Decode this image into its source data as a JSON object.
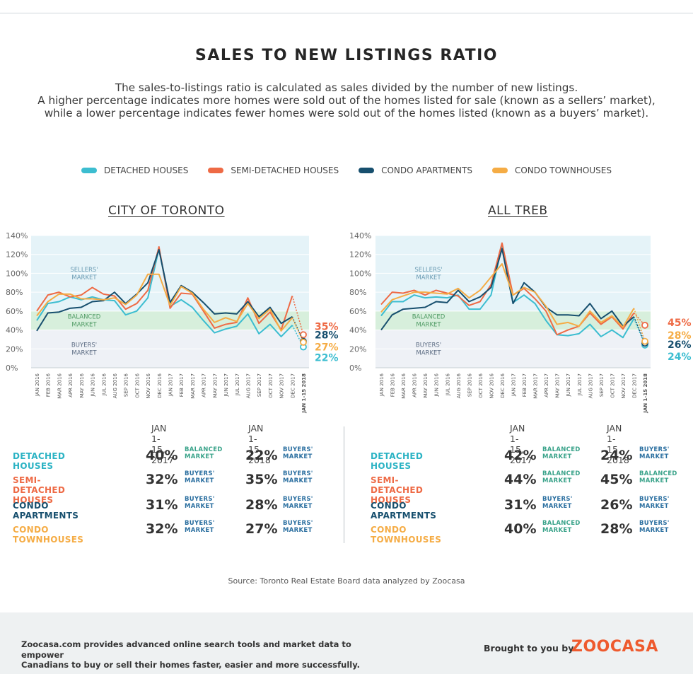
{
  "title": "SALES TO NEW LISTINGS RATIO",
  "subtitle": [
    "The sales-to-listings ratio is calculated as sales divided by the number of new listings.",
    "A higher percentage indicates more homes were sold out of the homes listed for sale (known as a sellers’ market),",
    "while a lower percentage indicates fewer homes were sold out of the homes listed (known as a buyers’ market)."
  ],
  "legend": [
    {
      "label": "DETACHED HOUSES",
      "color": "#3cbdd0"
    },
    {
      "label": "SEMI-DETACHED HOUSES",
      "color": "#ee6a45"
    },
    {
      "label": "CONDO APARTMENTS",
      "color": "#174f6e"
    },
    {
      "label": "CONDO TOWNHOUSES",
      "color": "#f5ac45"
    }
  ],
  "zones": {
    "sellers": "SELLERS' MARKET",
    "balanced": "BALANCED MARKET",
    "buyers": "BUYERS' MARKET"
  },
  "chart_data": [
    {
      "type": "line",
      "title": "CITY OF TORONTO",
      "ylim": [
        0,
        140
      ],
      "yticks": [
        "0%",
        "20%",
        "40%",
        "60%",
        "80%",
        "100%",
        "120%",
        "140%"
      ],
      "categories": [
        "JAN 2016",
        "FEB 2016",
        "MAR 2016",
        "APR 2016",
        "MAY 2016",
        "JUN 2016",
        "JUL 2016",
        "AUG 2016",
        "SEP 2016",
        "OCT 2016",
        "NOV 2016",
        "DEC 2016",
        "JAN 2017",
        "FEB 2017",
        "MAR 2017",
        "APR 2017",
        "MAY 2017",
        "JUN 2017",
        "JUL 2017",
        "AUG 2017",
        "SEP 2017",
        "OCT 2017",
        "NOV 2017",
        "DEC 2017",
        "JAN 1-15 2018"
      ],
      "series": [
        {
          "name": "DETACHED HOUSES",
          "color": "#3cbdd0",
          "values": [
            50,
            68,
            70,
            75,
            72,
            75,
            72,
            71,
            56,
            60,
            74,
            126,
            65,
            72,
            64,
            50,
            37,
            41,
            44,
            57,
            36,
            46,
            33,
            45,
            22
          ],
          "end_label": "22%"
        },
        {
          "name": "SEMI-DETACHED HOUSES",
          "color": "#ee6a45",
          "values": [
            60,
            77,
            80,
            75,
            77,
            85,
            78,
            76,
            62,
            68,
            82,
            128,
            63,
            79,
            78,
            60,
            42,
            46,
            48,
            74,
            47,
            59,
            40,
            76,
            35
          ],
          "end_label": "35%"
        },
        {
          "name": "CONDO APARTMENTS",
          "color": "#174f6e",
          "values": [
            39,
            58,
            59,
            63,
            64,
            70,
            71,
            80,
            68,
            78,
            90,
            125,
            69,
            87,
            80,
            69,
            57,
            58,
            57,
            70,
            54,
            64,
            47,
            54,
            28
          ],
          "end_label": "28%"
        },
        {
          "name": "CONDO TOWNHOUSES",
          "color": "#f5ac45",
          "values": [
            55,
            70,
            78,
            78,
            73,
            73,
            72,
            74,
            67,
            77,
            99,
            99,
            66,
            86,
            79,
            62,
            48,
            53,
            49,
            68,
            52,
            62,
            39,
            53,
            27
          ],
          "end_label": "27%"
        }
      ]
    },
    {
      "type": "line",
      "title": "ALL TREB",
      "ylim": [
        0,
        140
      ],
      "yticks": [
        "0%",
        "20%",
        "40%",
        "60%",
        "80%",
        "100%",
        "120%",
        "140%"
      ],
      "categories": [
        "JAN 2016",
        "FEB 2016",
        "MAR 2016",
        "APR 2016",
        "MAY 2016",
        "JUN 2016",
        "JUL 2016",
        "AUG 2016",
        "SEP 2016",
        "OCT 2016",
        "NOV 2016",
        "DEC 2016",
        "JAN 2017",
        "FEB 2017",
        "MAR 2017",
        "APR 2017",
        "MAY 2017",
        "JUN 2017",
        "JUL 2017",
        "AUG 2017",
        "SEP 2017",
        "OCT 2017",
        "NOV 2017",
        "DEC 2017",
        "JAN 1-15 2018"
      ],
      "series": [
        {
          "name": "DETACHED HOUSES",
          "color": "#3cbdd0",
          "values": [
            55,
            70,
            70,
            77,
            74,
            75,
            74,
            77,
            62,
            62,
            77,
            130,
            69,
            77,
            68,
            50,
            35,
            34,
            36,
            46,
            33,
            40,
            32,
            52,
            24
          ],
          "end_label": "24%"
        },
        {
          "name": "SEMI-DETACHED HOUSES",
          "color": "#ee6a45",
          "values": [
            67,
            80,
            79,
            82,
            77,
            82,
            79,
            76,
            66,
            70,
            88,
            132,
            77,
            84,
            73,
            60,
            35,
            40,
            44,
            58,
            46,
            54,
            41,
            58,
            45
          ],
          "end_label": "45%"
        },
        {
          "name": "CONDO APARTMENTS",
          "color": "#174f6e",
          "values": [
            40,
            56,
            62,
            63,
            64,
            70,
            69,
            82,
            70,
            75,
            85,
            126,
            68,
            90,
            80,
            64,
            56,
            56,
            55,
            68,
            52,
            60,
            44,
            54,
            26
          ],
          "end_label": "26%"
        },
        {
          "name": "CONDO TOWNHOUSES",
          "color": "#f5ac45",
          "values": [
            59,
            72,
            76,
            80,
            80,
            79,
            78,
            84,
            74,
            82,
            96,
            110,
            77,
            85,
            80,
            65,
            46,
            48,
            44,
            60,
            48,
            55,
            43,
            63,
            28
          ],
          "end_label": "28%"
        }
      ]
    }
  ],
  "tables": [
    {
      "col_2017": "JAN 1-15, 2017",
      "col_2018": "JAN 1-15, 2018",
      "rows": [
        {
          "label": "DETACHED HOUSES",
          "color": "#2bb3c4",
          "v2017": "40%",
          "m2017": [
            "BALANCED",
            "MARKET"
          ],
          "c2017": "#3aa38a",
          "v2018": "22%",
          "m2018": [
            "BUYERS'",
            "MARKET"
          ],
          "c2018": "#2b6fa0"
        },
        {
          "label": "SEMI-DETACHED HOUSES",
          "color": "#ee6a45",
          "v2017": "32%",
          "m2017": [
            "BUYERS'",
            "MARKET"
          ],
          "c2017": "#2b6fa0",
          "v2018": "35%",
          "m2018": [
            "BUYERS'",
            "MARKET"
          ],
          "c2018": "#2b6fa0"
        },
        {
          "label": "CONDO APARTMENTS",
          "color": "#174f6e",
          "v2017": "31%",
          "m2017": [
            "BUYERS'",
            "MARKET"
          ],
          "c2017": "#2b6fa0",
          "v2018": "28%",
          "m2018": [
            "BUYERS'",
            "MARKET"
          ],
          "c2018": "#2b6fa0"
        },
        {
          "label": "CONDO TOWNHOUSES",
          "color": "#f5ac45",
          "v2017": "32%",
          "m2017": [
            "BUYERS'",
            "MARKET"
          ],
          "c2017": "#2b6fa0",
          "v2018": "27%",
          "m2018": [
            "BUYERS'",
            "MARKET"
          ],
          "c2018": "#2b6fa0"
        }
      ]
    },
    {
      "col_2017": "JAN 1-15, 2017",
      "col_2018": "JAN 1-15, 2018",
      "rows": [
        {
          "label": "DETACHED HOUSES",
          "color": "#2bb3c4",
          "v2017": "42%",
          "m2017": [
            "BALANCED",
            "MARKET"
          ],
          "c2017": "#3aa38a",
          "v2018": "24%",
          "m2018": [
            "BUYERS'",
            "MARKET"
          ],
          "c2018": "#2b6fa0"
        },
        {
          "label": "SEMI-DETACHED HOUSES",
          "color": "#ee6a45",
          "v2017": "44%",
          "m2017": [
            "BALANCED",
            "MARKET"
          ],
          "c2017": "#3aa38a",
          "v2018": "45%",
          "m2018": [
            "BALANCED",
            "MARKET"
          ],
          "c2018": "#3aa38a"
        },
        {
          "label": "CONDO APARTMENTS",
          "color": "#174f6e",
          "v2017": "31%",
          "m2017": [
            "BUYERS'",
            "MARKET"
          ],
          "c2017": "#2b6fa0",
          "v2018": "26%",
          "m2018": [
            "BUYERS'",
            "MARKET"
          ],
          "c2018": "#2b6fa0"
        },
        {
          "label": "CONDO TOWNHOUSES",
          "color": "#f5ac45",
          "v2017": "40%",
          "m2017": [
            "BALANCED",
            "MARKET"
          ],
          "c2017": "#3aa38a",
          "v2018": "28%",
          "m2018": [
            "BUYERS'",
            "MARKET"
          ],
          "c2018": "#2b6fa0"
        }
      ]
    }
  ],
  "source": "Source: Toronto Real Estate Board data analyzed by Zoocasa",
  "footer": {
    "text_1": "Zoocasa.com provides advanced online search tools and market data to empower",
    "text_2": "Canadians to buy or sell their homes faster, easier and more successfully.",
    "brought_by": "Brought to you by",
    "logo_text": "ZOOCASA"
  }
}
